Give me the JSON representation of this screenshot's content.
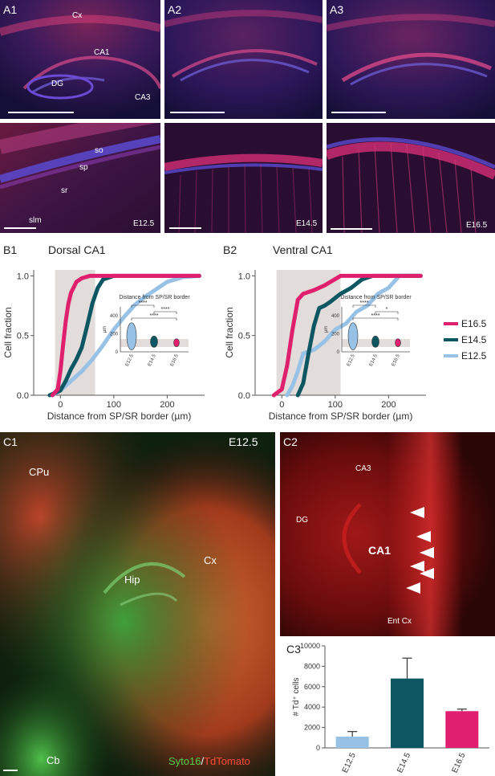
{
  "panels_a": [
    {
      "label": "A1",
      "regions": [
        "Cx",
        "CA1",
        "DG",
        "CA3"
      ]
    },
    {
      "label": "A2"
    },
    {
      "label": "A3"
    }
  ],
  "panels_a_zoom": [
    {
      "layers": [
        "so",
        "sp",
        "sr",
        "slm"
      ],
      "stage": "E12.5"
    },
    {
      "stage": "E14.5"
    },
    {
      "stage": "E16.5"
    }
  ],
  "panel_b1": {
    "label": "B1",
    "title": "Dorsal CA1"
  },
  "panel_b2": {
    "label": "B2",
    "title": "Ventral CA1"
  },
  "panel_c1": {
    "label": "C1",
    "stage": "E12.5",
    "regions": [
      "CPu",
      "Hip",
      "Cx",
      "Cb"
    ],
    "stain_green": "Syto16",
    "stain_sep": "/",
    "stain_red": "TdTomato"
  },
  "panel_c2": {
    "label": "C2",
    "regions": [
      "CA3",
      "DG",
      "CA1",
      "Ent Cx"
    ]
  },
  "panel_c3": {
    "label": "C3"
  },
  "colors": {
    "E16.5": "#e0206e",
    "E14.5": "#0d5763",
    "E12.5": "#98c1e6",
    "shade": "#e2ddda"
  },
  "chart_data": [
    {
      "type": "line",
      "panel": "B1",
      "title": "Dorsal CA1",
      "xlabel": "Distance from SP/SR border (µm)",
      "ylabel": "Cell fraction",
      "xlim": [
        -50,
        270
      ],
      "ylim": [
        0,
        1.05
      ],
      "xticks": [
        0,
        100,
        200
      ],
      "yticks": [
        0.0,
        0.5,
        1.0
      ],
      "shaded_x": [
        -10,
        65
      ],
      "series": [
        {
          "name": "E16.5",
          "x": [
            -15,
            -5,
            0,
            5,
            10,
            15,
            20,
            30,
            40,
            55,
            70,
            90,
            260
          ],
          "y": [
            0,
            0.05,
            0.2,
            0.42,
            0.62,
            0.77,
            0.86,
            0.95,
            0.98,
            1.0,
            1.0,
            1.0,
            1.0
          ]
        },
        {
          "name": "E14.5",
          "x": [
            -20,
            0,
            10,
            20,
            30,
            40,
            50,
            60,
            70,
            80,
            100,
            130,
            260
          ],
          "y": [
            0,
            0.04,
            0.12,
            0.22,
            0.3,
            0.4,
            0.58,
            0.77,
            0.9,
            0.97,
            1.0,
            1.0,
            1.0
          ]
        },
        {
          "name": "E12.5",
          "x": [
            -15,
            0,
            20,
            40,
            60,
            80,
            100,
            120,
            140,
            160,
            180,
            200,
            230,
            260
          ],
          "y": [
            0,
            0.04,
            0.12,
            0.2,
            0.3,
            0.42,
            0.55,
            0.66,
            0.76,
            0.83,
            0.89,
            0.95,
            0.99,
            1.0
          ]
        }
      ],
      "inset": {
        "title": "Distance from SP/SR border",
        "ylabel": "µm",
        "yticks": [
          0,
          200,
          400
        ],
        "categories": [
          "E12.5",
          "E14.5",
          "E16.5"
        ],
        "significance": [
          "****",
          "****",
          "****"
        ]
      }
    },
    {
      "type": "line",
      "panel": "B2",
      "title": "Ventral CA1",
      "xlabel": "Distance from SP/SR border (µm)",
      "ylabel": "Cell fraction",
      "xlim": [
        -50,
        270
      ],
      "ylim": [
        0,
        1.05
      ],
      "xticks": [
        0,
        100,
        200
      ],
      "yticks": [
        0.0,
        0.5,
        1.0
      ],
      "shaded_x": [
        -10,
        110
      ],
      "series": [
        {
          "name": "E16.5",
          "x": [
            -15,
            0,
            10,
            20,
            30,
            40,
            60,
            80,
            110,
            260
          ],
          "y": [
            0,
            0.05,
            0.25,
            0.55,
            0.8,
            0.85,
            0.88,
            0.92,
            1.0,
            1.0
          ]
        },
        {
          "name": "E14.5",
          "x": [
            30,
            40,
            50,
            60,
            70,
            80,
            90,
            110,
            130,
            150,
            170,
            260
          ],
          "y": [
            0,
            0.1,
            0.35,
            0.58,
            0.73,
            0.75,
            0.78,
            0.85,
            0.9,
            0.97,
            1.0,
            1.0
          ]
        },
        {
          "name": "E12.5",
          "x": [
            10,
            20,
            30,
            40,
            60,
            80,
            100,
            120,
            140,
            160,
            180,
            200,
            220,
            260
          ],
          "y": [
            0,
            0.08,
            0.2,
            0.35,
            0.38,
            0.45,
            0.55,
            0.6,
            0.7,
            0.75,
            0.85,
            0.9,
            1.0,
            1.0
          ]
        }
      ],
      "inset": {
        "title": "Distance from SP/SR border",
        "ylabel": "µm",
        "yticks": [
          0,
          200,
          400
        ],
        "categories": [
          "E12.5",
          "E14.5",
          "E16.5"
        ],
        "significance": [
          "****",
          "*",
          "****"
        ]
      }
    },
    {
      "type": "bar",
      "panel": "C3",
      "ylabel": "# Td⁺ cells",
      "categories": [
        "E12.5",
        "E14.5",
        "E16.5"
      ],
      "values": [
        1100,
        6800,
        3600
      ],
      "errors": [
        500,
        2000,
        200
      ],
      "ylim": [
        0,
        10000
      ],
      "yticks": [
        0,
        2000,
        4000,
        6000,
        8000,
        10000
      ]
    }
  ],
  "legend": [
    "E16.5",
    "E14.5",
    "E12.5"
  ]
}
